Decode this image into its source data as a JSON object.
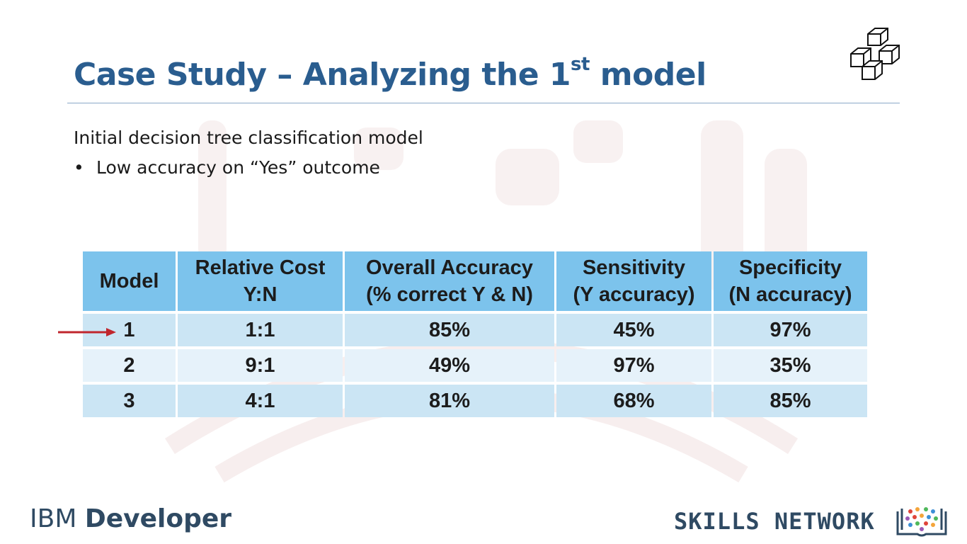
{
  "slide": {
    "title_main": "Case Study – Analyzing the 1",
    "title_sup": "st",
    "title_end": " model",
    "subtitle": "Initial decision tree classification model",
    "bullet_marker": "•",
    "bullet": "Low accuracy on “Yes” outcome"
  },
  "table": {
    "headers": [
      [
        "Model"
      ],
      [
        "Relative Cost",
        "Y:N"
      ],
      [
        "Overall Accuracy",
        "(% correct Y & N)"
      ],
      [
        "Sensitivity",
        "(Y accuracy)"
      ],
      [
        "Specificity",
        "(N accuracy)"
      ]
    ],
    "rows": [
      {
        "model": "1",
        "cost": "1:1",
        "accuracy": "85%",
        "sensitivity": "45%",
        "specificity": "97%"
      },
      {
        "model": "2",
        "cost": "9:1",
        "accuracy": "49%",
        "sensitivity": "97%",
        "specificity": "35%"
      },
      {
        "model": "3",
        "cost": "4:1",
        "accuracy": "81%",
        "sensitivity": "68%",
        "specificity": "85%"
      }
    ],
    "highlighted_row": "1"
  },
  "footer": {
    "ibm": "IBM",
    "developer": "Developer",
    "skills_network": "SKILLS NETWORK"
  },
  "colors": {
    "title": "#2a5d8f",
    "header_cell": "#7cc3ec",
    "row_odd": "#cbe5f4",
    "row_even": "#e6f2fa",
    "arrow": "#c0262d",
    "footer_text": "#2f4a63"
  },
  "icons": [
    "cube-cluster-icon",
    "row-pointer-arrow-icon",
    "skills-network-book-icon"
  ]
}
